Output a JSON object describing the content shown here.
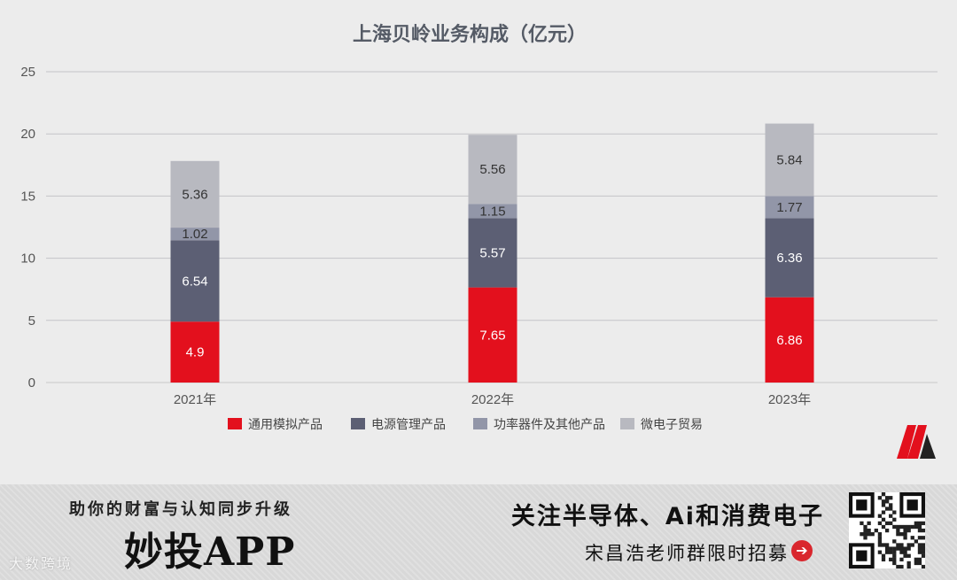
{
  "chart_data": {
    "type": "bar",
    "stacked": true,
    "title": "上海贝岭业务构成（亿元）",
    "categories": [
      "2021年",
      "2022年",
      "2023年"
    ],
    "ylim": [
      0,
      25
    ],
    "yticks": [
      0,
      5,
      10,
      15,
      20,
      25
    ],
    "grid": true,
    "legend_position": "bottom",
    "series": [
      {
        "name": "通用模拟产品",
        "values": [
          4.9,
          7.65,
          6.86
        ],
        "labels": [
          "4.9",
          "7.65",
          "6.86"
        ],
        "color": "#e3101d",
        "label_color": "#ffffff"
      },
      {
        "name": "电源管理产品",
        "values": [
          6.54,
          5.57,
          6.36
        ],
        "labels": [
          "6.54",
          "5.57",
          "6.36"
        ],
        "color": "#5c5f74",
        "label_color": "#ffffff"
      },
      {
        "name": "功率器件及其他产品",
        "values": [
          1.02,
          1.15,
          1.77
        ],
        "labels": [
          "1.02",
          "1.15",
          "1.77"
        ],
        "color": "#9296a8",
        "label_color": "#333333"
      },
      {
        "name": "微电子贸易",
        "values": [
          5.36,
          5.56,
          5.84
        ],
        "labels": [
          "5.36",
          "5.56",
          "5.84"
        ],
        "color": "#b8b9c0",
        "label_color": "#333333"
      }
    ]
  },
  "banner": {
    "slogan": "助你的财富与认知同步升级",
    "app_name": "妙投APP",
    "watermark": "大数跨境",
    "focus_text": "关注半导体、Ai和消费电子",
    "recruit_text": "宋昌浩老师群限时招募",
    "arrow_icon": "arrow-right-icon",
    "accent_color": "#d9262d"
  },
  "logo_icon": "brand-m-logo"
}
